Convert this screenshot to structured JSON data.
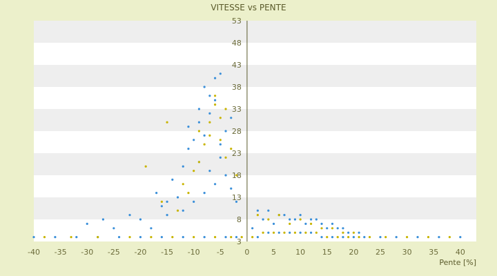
{
  "chart_data": {
    "type": "scatter",
    "title": "VITESSE vs PENTE",
    "xlabel": "Pente [%]",
    "ylabel": "",
    "xlim": [
      -40,
      43
    ],
    "ylim": [
      3,
      53
    ],
    "xticks": [
      -40,
      -35,
      -30,
      -25,
      -20,
      -15,
      -10,
      -5,
      0,
      5,
      10,
      15,
      20,
      25,
      30,
      35,
      40
    ],
    "yticks": [
      3,
      8,
      13,
      18,
      23,
      28,
      33,
      38,
      43,
      48,
      53
    ],
    "grid": "horizontal alternating bands",
    "legend": "none",
    "colors": {
      "series_1": "#3a8fd9",
      "series_2": "#c8b400",
      "background": "#ecf0cb",
      "band": "#eeeeee"
    },
    "series": [
      {
        "color": "#3a8fd9",
        "x": [
          -40,
          -36,
          -32,
          -28,
          -24,
          -20,
          -16,
          -12,
          -8,
          -4,
          -2,
          2,
          4,
          6,
          8,
          10,
          12,
          14,
          16,
          18,
          20,
          22,
          25,
          28,
          32,
          36,
          40,
          -30,
          -25,
          -20,
          -18,
          -15,
          -12,
          -10,
          -8,
          -6,
          -5,
          -4,
          -3,
          -10,
          -9,
          -8,
          -7,
          -12,
          -14,
          -6,
          -5,
          -11,
          -9,
          -7,
          -13,
          -16,
          -4,
          -3,
          -2,
          1,
          3,
          5,
          7,
          9,
          11,
          13,
          15,
          17,
          19,
          21,
          2,
          4,
          6,
          8,
          10,
          12,
          14,
          16,
          18,
          -15,
          -17,
          -22,
          -27,
          -8,
          -6,
          -9,
          -11,
          -5,
          -7
        ],
        "y": [
          4,
          4,
          4,
          4,
          4,
          4,
          4,
          4,
          4,
          4,
          4,
          4,
          5,
          5,
          5,
          5,
          5,
          4,
          4,
          4,
          4,
          4,
          4,
          4,
          4,
          4,
          4,
          7,
          6,
          8,
          6,
          9,
          10,
          12,
          14,
          16,
          22,
          28,
          31,
          26,
          30,
          27,
          32,
          20,
          17,
          35,
          41,
          24,
          21,
          36,
          13,
          11,
          18,
          15,
          12,
          6,
          8,
          7,
          9,
          8,
          7,
          8,
          6,
          6,
          5,
          5,
          10,
          10,
          9,
          8,
          9,
          8,
          7,
          7,
          6,
          12,
          14,
          9,
          8,
          38,
          40,
          33,
          29,
          25,
          19
        ]
      },
      {
        "color": "#c8b400",
        "x": [
          -38,
          -33,
          -28,
          -22,
          -18,
          -14,
          -10,
          -6,
          -3,
          -1,
          1,
          3,
          5,
          7,
          9,
          11,
          13,
          15,
          17,
          19,
          21,
          23,
          26,
          30,
          34,
          38,
          -16,
          -12,
          -9,
          -7,
          -5,
          -4,
          -8,
          -10,
          -6,
          -11,
          -13,
          -3,
          -2,
          2,
          4,
          6,
          8,
          10,
          12,
          14,
          16,
          18,
          20,
          -19,
          -15,
          -9,
          -6,
          -4,
          -7,
          -5
        ],
        "y": [
          4,
          4,
          4,
          4,
          4,
          4,
          4,
          4,
          4,
          4,
          4,
          5,
          5,
          5,
          5,
          5,
          5,
          4,
          4,
          4,
          4,
          4,
          4,
          4,
          4,
          4,
          12,
          16,
          21,
          27,
          31,
          33,
          25,
          19,
          36,
          14,
          10,
          24,
          18,
          9,
          8,
          9,
          7,
          8,
          7,
          6,
          6,
          5,
          5,
          20,
          30,
          28,
          34,
          22,
          30,
          26
        ]
      }
    ]
  }
}
